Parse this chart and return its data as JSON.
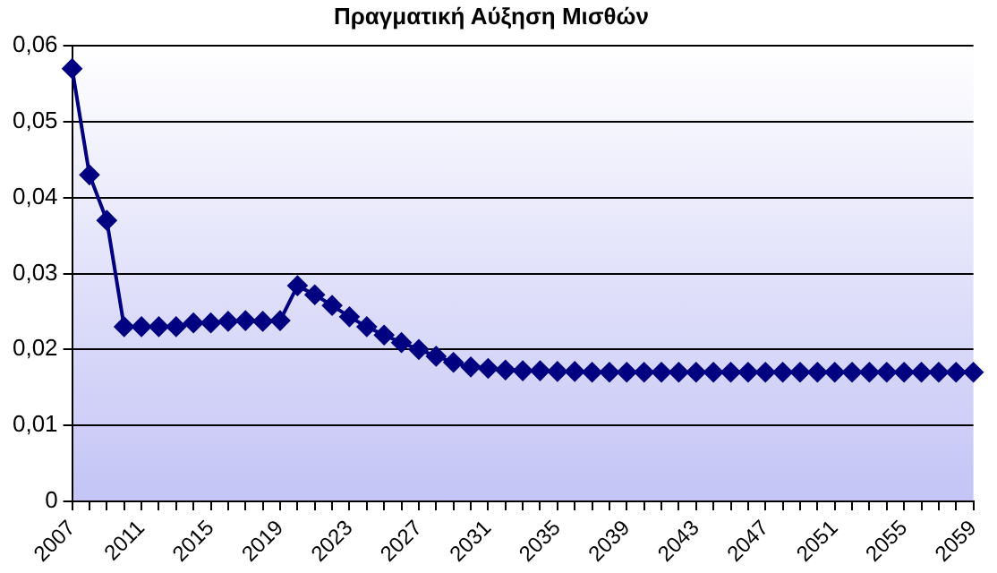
{
  "chart_data": {
    "type": "line",
    "title": "Πραγματική Αύξηση Μισθών",
    "categories": [
      "2007",
      null,
      null,
      null,
      "2011",
      null,
      null,
      null,
      "2015",
      null,
      null,
      null,
      "2019",
      null,
      null,
      null,
      "2023",
      null,
      null,
      null,
      "2027",
      null,
      null,
      null,
      "2031",
      null,
      null,
      null,
      "2035",
      null,
      null,
      null,
      "2039",
      null,
      null,
      null,
      "2043",
      null,
      null,
      null,
      "2047",
      null,
      null,
      null,
      "2051",
      null,
      null,
      null,
      "2055",
      null,
      null,
      null,
      "2059"
    ],
    "series": [
      {
        "color": "#000080",
        "values": [
          0.057,
          0.043,
          0.037,
          0.023,
          0.023,
          0.023,
          0.023,
          0.0235,
          0.0235,
          0.0237,
          0.0238,
          0.0237,
          0.0238,
          0.0284,
          0.0272,
          0.0258,
          0.0243,
          0.023,
          0.0219,
          0.0209,
          0.02,
          0.0191,
          0.0183,
          0.0177,
          0.0175,
          0.0173,
          0.0172,
          0.0172,
          0.0171,
          0.0171,
          0.017,
          0.017,
          0.017,
          0.017,
          0.017,
          0.017,
          0.017,
          0.017,
          0.017,
          0.017,
          0.017,
          0.017,
          0.017,
          0.017,
          0.017,
          0.017,
          0.017,
          0.017,
          0.017,
          0.017,
          0.017,
          0.017,
          0.017
        ]
      }
    ],
    "ylim": [
      0,
      0.06
    ],
    "yticks": [
      {
        "value": 0,
        "label": "0"
      },
      {
        "value": 0.01,
        "label": "0,01"
      },
      {
        "value": 0.02,
        "label": "0,02"
      },
      {
        "value": 0.03,
        "label": "0,03"
      },
      {
        "value": 0.04,
        "label": "0,04"
      },
      {
        "value": 0.05,
        "label": "0,05"
      },
      {
        "value": 0.06,
        "label": "0,06"
      }
    ],
    "grid": "y",
    "legend": false,
    "marker": "diamond",
    "line_style": "solid"
  }
}
